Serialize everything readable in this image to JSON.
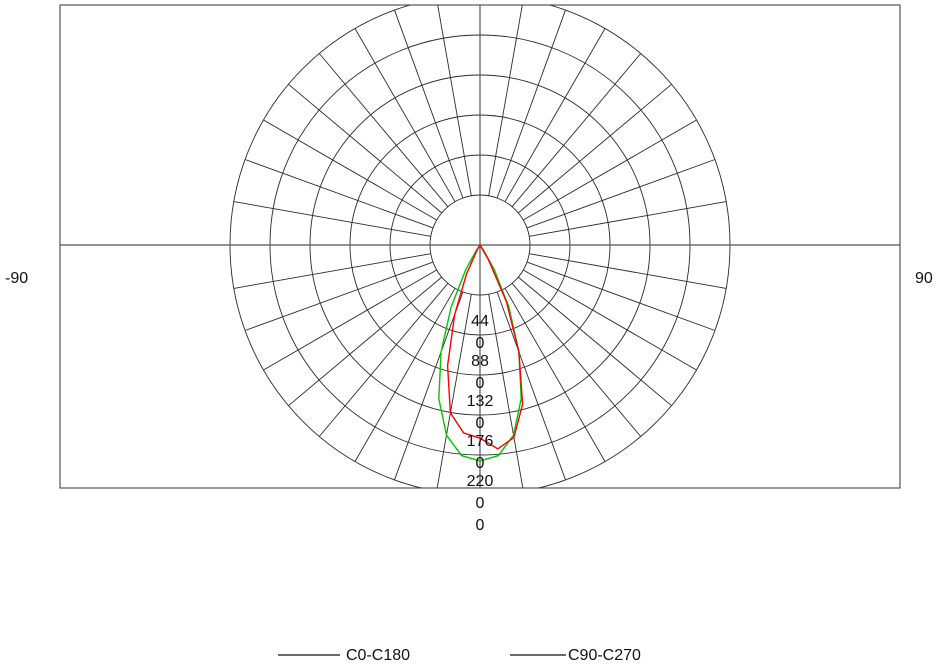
{
  "chart_data": {
    "type": "polar",
    "angle_labels": {
      "left": "-90",
      "right": "90"
    },
    "rings": [
      {
        "value": 44,
        "label": "44\n0"
      },
      {
        "value": 88,
        "label": "88\n0"
      },
      {
        "value": 132,
        "label": "132\n0"
      },
      {
        "value": 176,
        "label": "176\n0"
      },
      {
        "value": 220,
        "label": "220\n0\n0"
      }
    ],
    "r_max": 220,
    "angular_grid_step_deg": 10,
    "grid": true,
    "legend_placement": "bottom",
    "series": [
      {
        "name": "C0-C180",
        "color": "#00c800",
        "points": [
          {
            "angle": 0,
            "value": 190
          },
          {
            "angle": 5,
            "value": 186
          },
          {
            "angle": 10,
            "value": 170
          },
          {
            "angle": 15,
            "value": 140
          },
          {
            "angle": 20,
            "value": 100
          },
          {
            "angle": 25,
            "value": 60
          },
          {
            "angle": 30,
            "value": 25
          },
          {
            "angle": 35,
            "value": 5
          },
          {
            "angle": 40,
            "value": 0
          },
          {
            "angle": -5,
            "value": 186
          },
          {
            "angle": -10,
            "value": 170
          },
          {
            "angle": -15,
            "value": 140
          },
          {
            "angle": -20,
            "value": 100
          },
          {
            "angle": -25,
            "value": 60
          },
          {
            "angle": -30,
            "value": 25
          },
          {
            "angle": -35,
            "value": 5
          },
          {
            "angle": -40,
            "value": 0
          }
        ]
      },
      {
        "name": "C90-C270",
        "color": "#ff0000",
        "points": [
          {
            "angle": 0,
            "value": 170
          },
          {
            "angle": 5,
            "value": 180
          },
          {
            "angle": 10,
            "value": 172
          },
          {
            "angle": 15,
            "value": 145
          },
          {
            "angle": 20,
            "value": 100
          },
          {
            "angle": 25,
            "value": 55
          },
          {
            "angle": 30,
            "value": 15
          },
          {
            "angle": 35,
            "value": 0
          },
          {
            "angle": -5,
            "value": 166
          },
          {
            "angle": -10,
            "value": 150
          },
          {
            "angle": -15,
            "value": 110
          },
          {
            "angle": -20,
            "value": 65
          },
          {
            "angle": -25,
            "value": 28
          },
          {
            "angle": -30,
            "value": 5
          },
          {
            "angle": -35,
            "value": 0
          }
        ]
      }
    ]
  }
}
